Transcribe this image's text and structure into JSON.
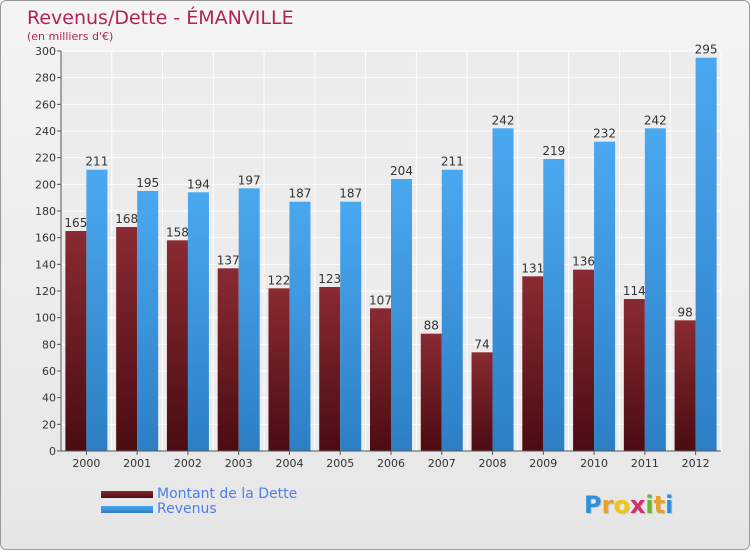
{
  "title": "Revenus/Dette - ÉMANVILLE",
  "subtitle": "(en milliers d'€)",
  "brand": {
    "letters": [
      "P",
      "r",
      "o",
      "x",
      "i",
      "t",
      "i"
    ],
    "colors": [
      "#2f8fd8",
      "#e8a02a",
      "#f0c419",
      "#d62d6b",
      "#6bb52e",
      "#e8a02a",
      "#2f8fd8"
    ]
  },
  "chart_data": {
    "type": "bar",
    "categories": [
      "2000",
      "2001",
      "2002",
      "2003",
      "2004",
      "2005",
      "2006",
      "2007",
      "2008",
      "2009",
      "2010",
      "2011",
      "2012"
    ],
    "series": [
      {
        "name": "Montant de la Dette",
        "color": "#7a1e26",
        "values": [
          165,
          168,
          158,
          137,
          122,
          123,
          107,
          88,
          74,
          131,
          136,
          114,
          98
        ]
      },
      {
        "name": "Revenus",
        "color": "#3d9ce8",
        "values": [
          211,
          195,
          194,
          197,
          187,
          187,
          204,
          211,
          242,
          219,
          232,
          242,
          295
        ]
      }
    ],
    "yticks": [
      0,
      20,
      40,
      60,
      80,
      100,
      120,
      140,
      160,
      180,
      200,
      220,
      240,
      260,
      280,
      300
    ],
    "ylim": [
      0,
      300
    ],
    "grid": true,
    "legend": "bottom-left"
  }
}
